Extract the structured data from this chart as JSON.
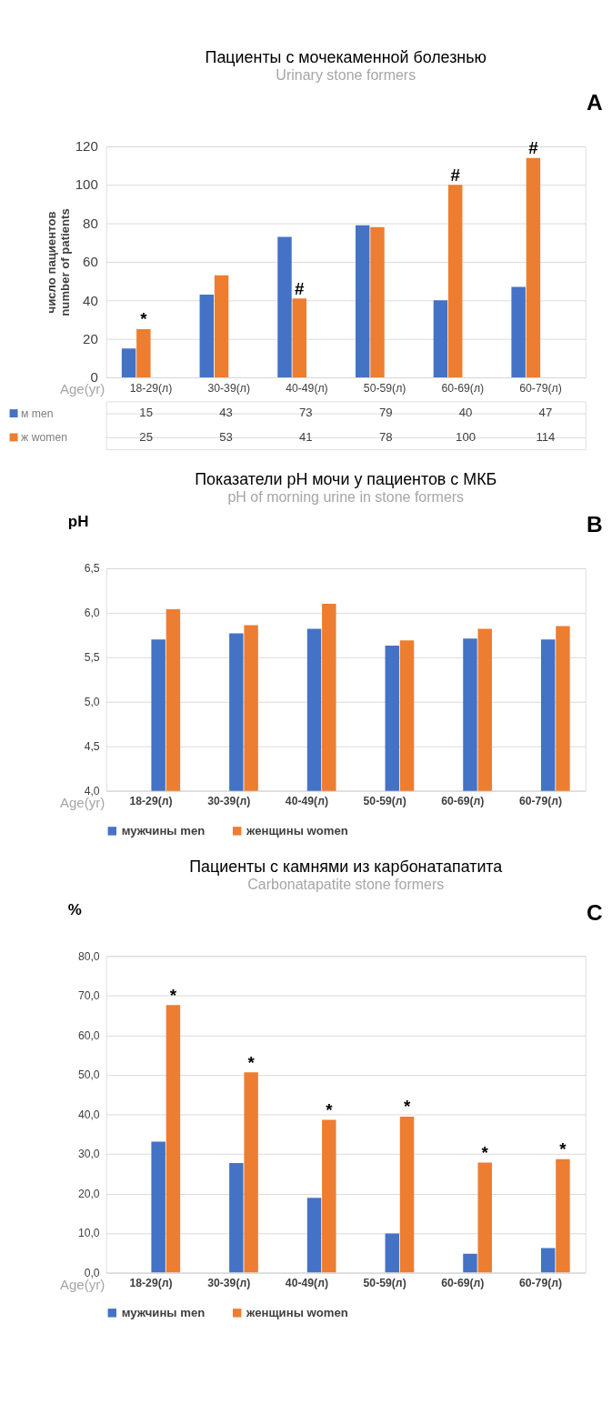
{
  "chart_data": [
    {
      "type": "bar",
      "title": "Пациенты с мочекаменной болезнью",
      "subtitle": "Urinary stone formers",
      "xlabel": "Age(yr)",
      "ylabel": "число пациентов\nnumber of patients",
      "categories": [
        "18-29(л)",
        "30-39(л)",
        "40-49(л)",
        "50-59(л)",
        "60-69(л)",
        "60-79(л)"
      ],
      "series": [
        {
          "name": "м men",
          "color": "#4472c4",
          "values": [
            15,
            43,
            73,
            79,
            40,
            47
          ]
        },
        {
          "name": "ж women",
          "color": "#ed7d31",
          "values": [
            25,
            53,
            41,
            78,
            100,
            114
          ]
        }
      ],
      "ylim": [
        0,
        120
      ],
      "yticks": [
        0,
        20,
        40,
        60,
        80,
        100,
        120
      ],
      "grid": "y",
      "data_labels": true,
      "legend": "bottom left",
      "annotations": [
        "A",
        {
          "text": "*",
          "x": "18-29(л)",
          "y": 25
        },
        {
          "text": "#",
          "x": "40-49(л)",
          "y": 41
        },
        {
          "text": "#",
          "x": "60-69(л)",
          "y": 100
        },
        {
          "text": "#",
          "x": "60-79(л)",
          "y": 114
        }
      ]
    },
    {
      "type": "bar",
      "title": "Показатели pH мочи у пациентов с МКБ",
      "subtitle": "pH of morning urine in stone formers",
      "xlabel": "Age(yr)",
      "ylabel": "pH",
      "categories": [
        "18-29(л)",
        "30-39(л)",
        "40-49(л)",
        "50-59(л)",
        "60-69(л)",
        "60-79(л)"
      ],
      "series": [
        {
          "name": "мужчины men",
          "color": "#4472c4",
          "values": [
            5.7,
            5.77,
            5.82,
            5.63,
            5.71,
            5.7
          ]
        },
        {
          "name": "женщины women",
          "color": "#ed7d31",
          "values": [
            6.04,
            5.86,
            6.1,
            5.69,
            5.82,
            5.85
          ]
        }
      ],
      "ylim": [
        4.0,
        6.5
      ],
      "yticks": [
        {
          "value": 4.0,
          "label": "4,0"
        },
        {
          "value": 4.5,
          "label": "4,5"
        },
        {
          "value": 5.0,
          "label": "5,0"
        },
        {
          "value": 5.5,
          "label": "5,5"
        },
        {
          "value": 6.0,
          "label": "6,0"
        },
        {
          "value": 6.5,
          "label": "6,5"
        }
      ],
      "grid": "y",
      "legend": "bottom",
      "annotations": [
        "B"
      ]
    },
    {
      "type": "bar",
      "title": "Пациенты с камнями из карбонатапатита",
      "subtitle": "Carbonatapatite stone formers",
      "xlabel": "Age(yr)",
      "ylabel": "%",
      "categories": [
        "18-29(л)",
        "30-39(л)",
        "40-49(л)",
        "50-59(л)",
        "60-69(л)",
        "60-79(л)"
      ],
      "series": [
        {
          "name": "мужчины men",
          "color": "#4472c4",
          "values": [
            33.1,
            27.7,
            18.9,
            9.9,
            4.8,
            6.2
          ]
        },
        {
          "name": "женщины women",
          "color": "#ed7d31",
          "values": [
            67.6,
            50.6,
            38.6,
            39.4,
            27.8,
            28.7
          ],
          "value_labels": [
            "*",
            "*",
            "*",
            "*",
            "*",
            "*"
          ]
        }
      ],
      "ylim": [
        0,
        80
      ],
      "yticks": [
        {
          "value": 0,
          "label": "0,0"
        },
        {
          "value": 10,
          "label": "10,0"
        },
        {
          "value": 20,
          "label": "20,0"
        },
        {
          "value": 30,
          "label": "30,0"
        },
        {
          "value": 40,
          "label": "40,0"
        },
        {
          "value": 50,
          "label": "50,0"
        },
        {
          "value": 60,
          "label": "60,0"
        },
        {
          "value": 70,
          "label": "70,0"
        },
        {
          "value": 80,
          "label": "80,0"
        }
      ],
      "grid": "y",
      "legend": "bottom",
      "annotations": [
        "C"
      ]
    }
  ]
}
